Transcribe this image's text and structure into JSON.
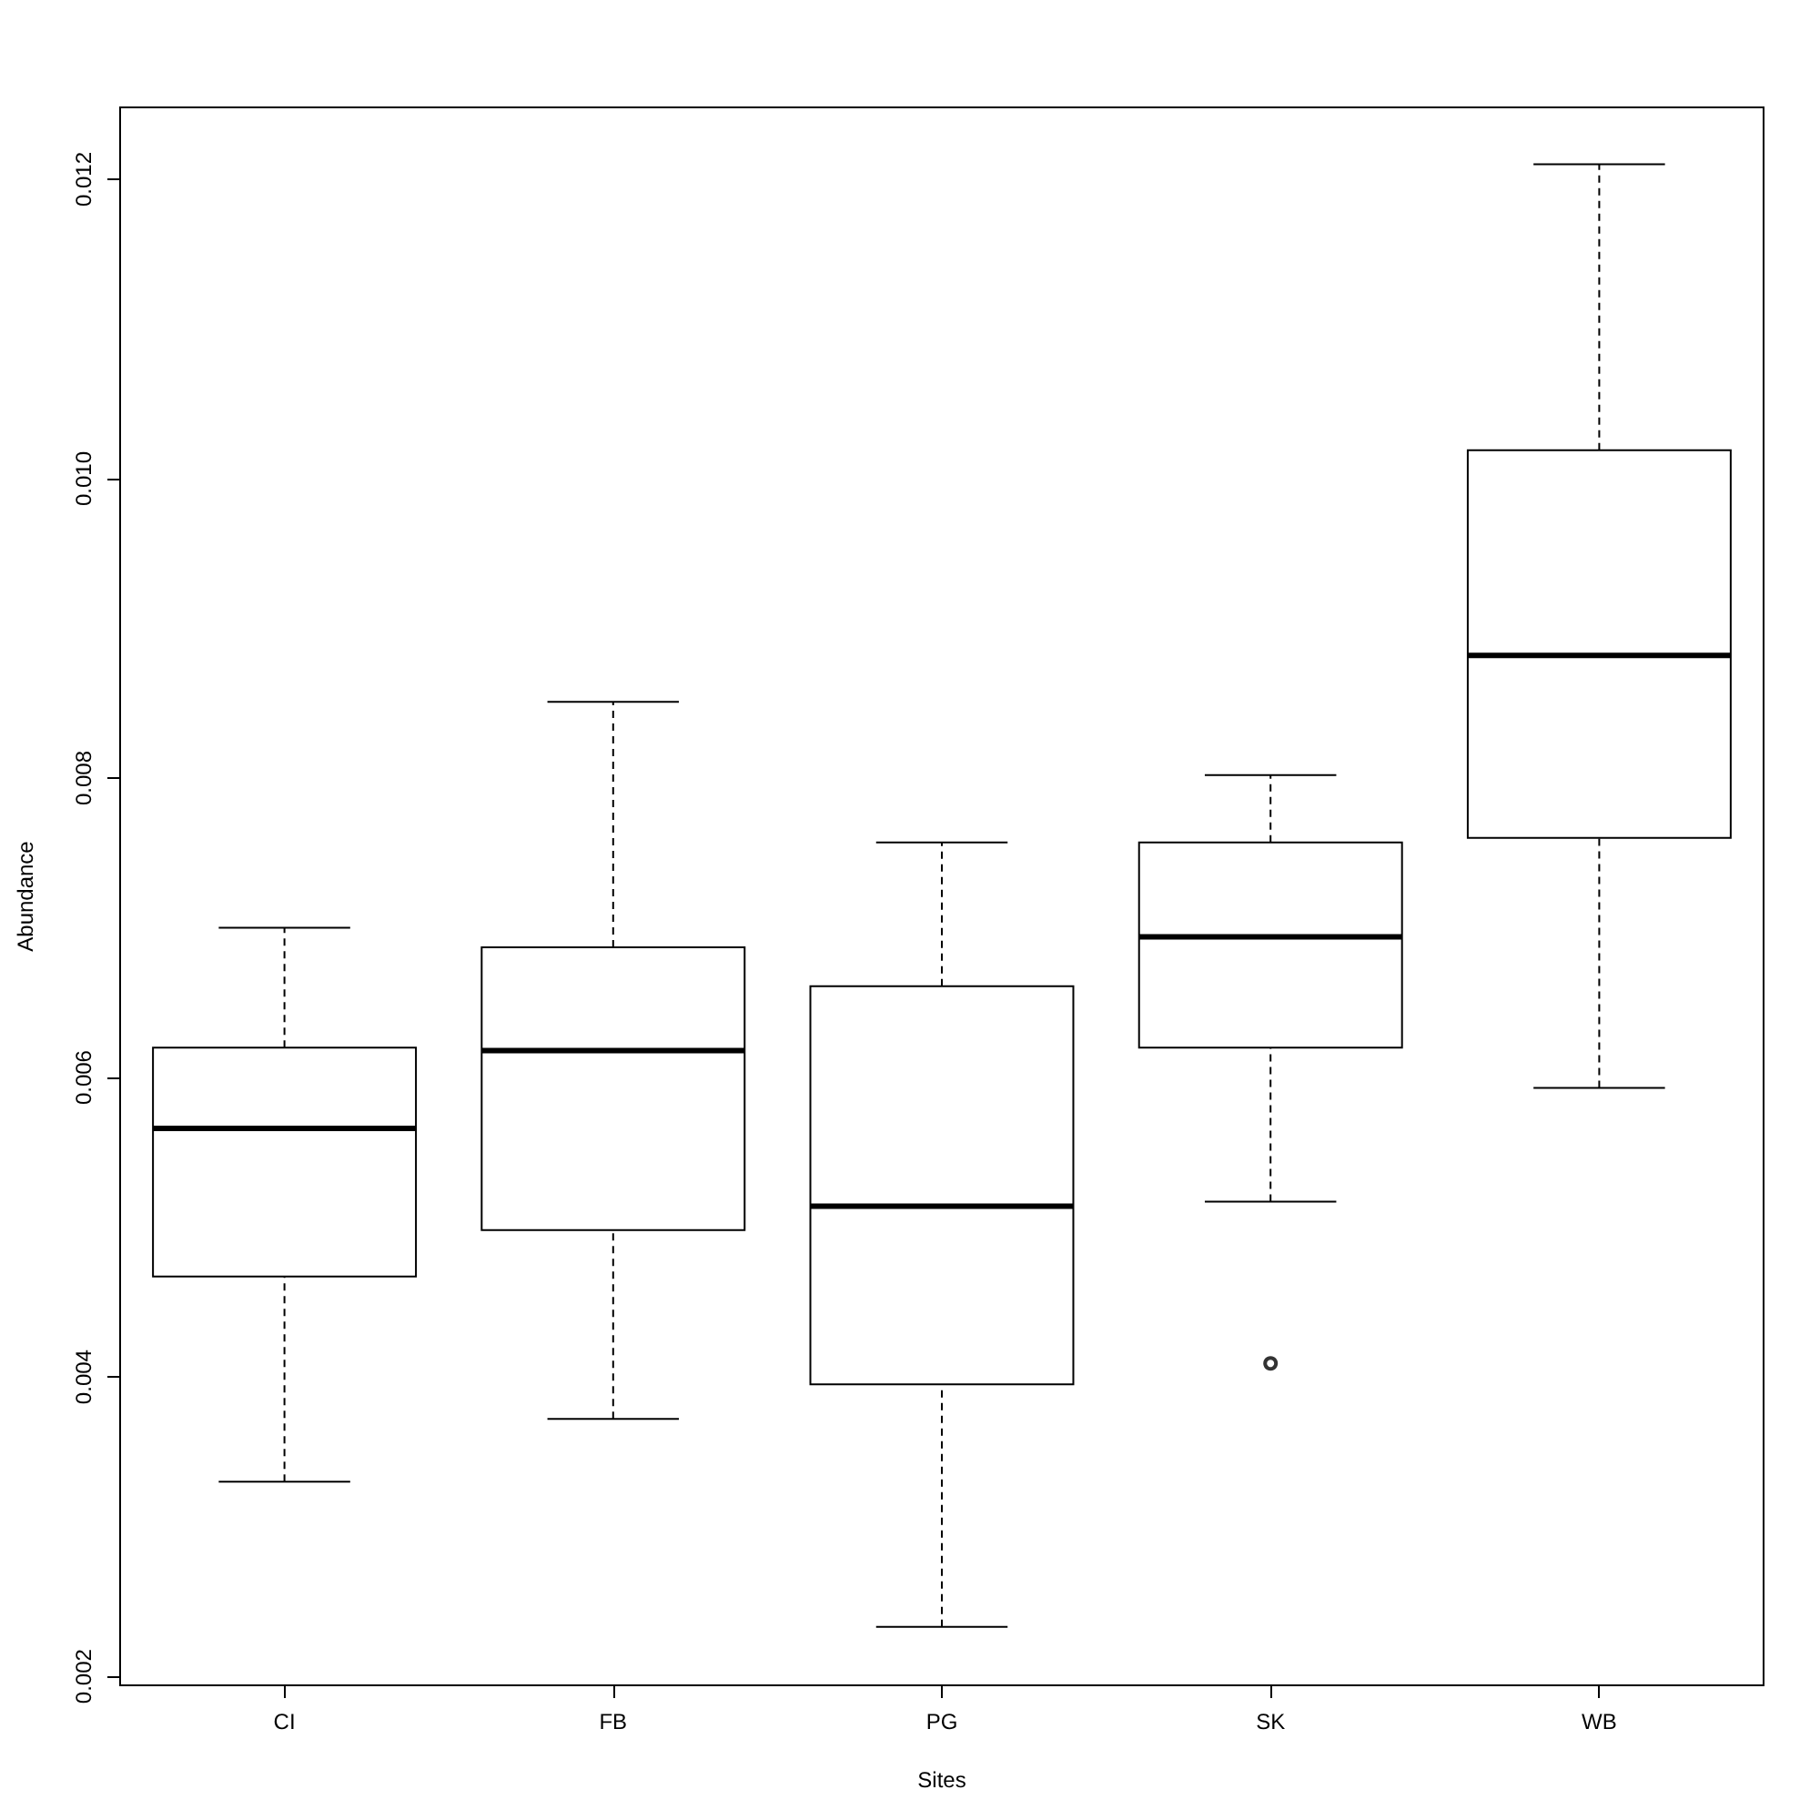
{
  "chart_data": {
    "type": "box",
    "xlabel": "Sites",
    "ylabel": "Abundance",
    "categories": [
      "CI",
      "FB",
      "PG",
      "SK",
      "WB"
    ],
    "boxes": [
      {
        "low": 0.0033,
        "q1": 0.00467,
        "median": 0.00566,
        "q3": 0.0062,
        "high": 0.007
      },
      {
        "low": 0.00372,
        "q1": 0.00498,
        "median": 0.00618,
        "q3": 0.00687,
        "high": 0.00851
      },
      {
        "low": 0.00233,
        "q1": 0.00395,
        "median": 0.00514,
        "q3": 0.00661,
        "high": 0.00757
      },
      {
        "low": 0.00517,
        "q1": 0.0062,
        "median": 0.00694,
        "q3": 0.00757,
        "high": 0.00802,
        "outliers": [
          0.00409
        ]
      },
      {
        "low": 0.00593,
        "q1": 0.0076,
        "median": 0.00882,
        "q3": 0.01019,
        "high": 0.0121
      }
    ],
    "color": "#000000",
    "ylim": [
      0.00194,
      0.01248
    ],
    "yticks": [
      {
        "value": 0.002,
        "label": "0.002"
      },
      {
        "value": 0.004,
        "label": "0.004"
      },
      {
        "value": 0.006,
        "label": "0.006"
      },
      {
        "value": 0.008,
        "label": "0.008"
      },
      {
        "value": 0.01,
        "label": "0.010"
      },
      {
        "value": 0.012,
        "label": "0.012"
      }
    ],
    "grid": false,
    "legend": false
  }
}
